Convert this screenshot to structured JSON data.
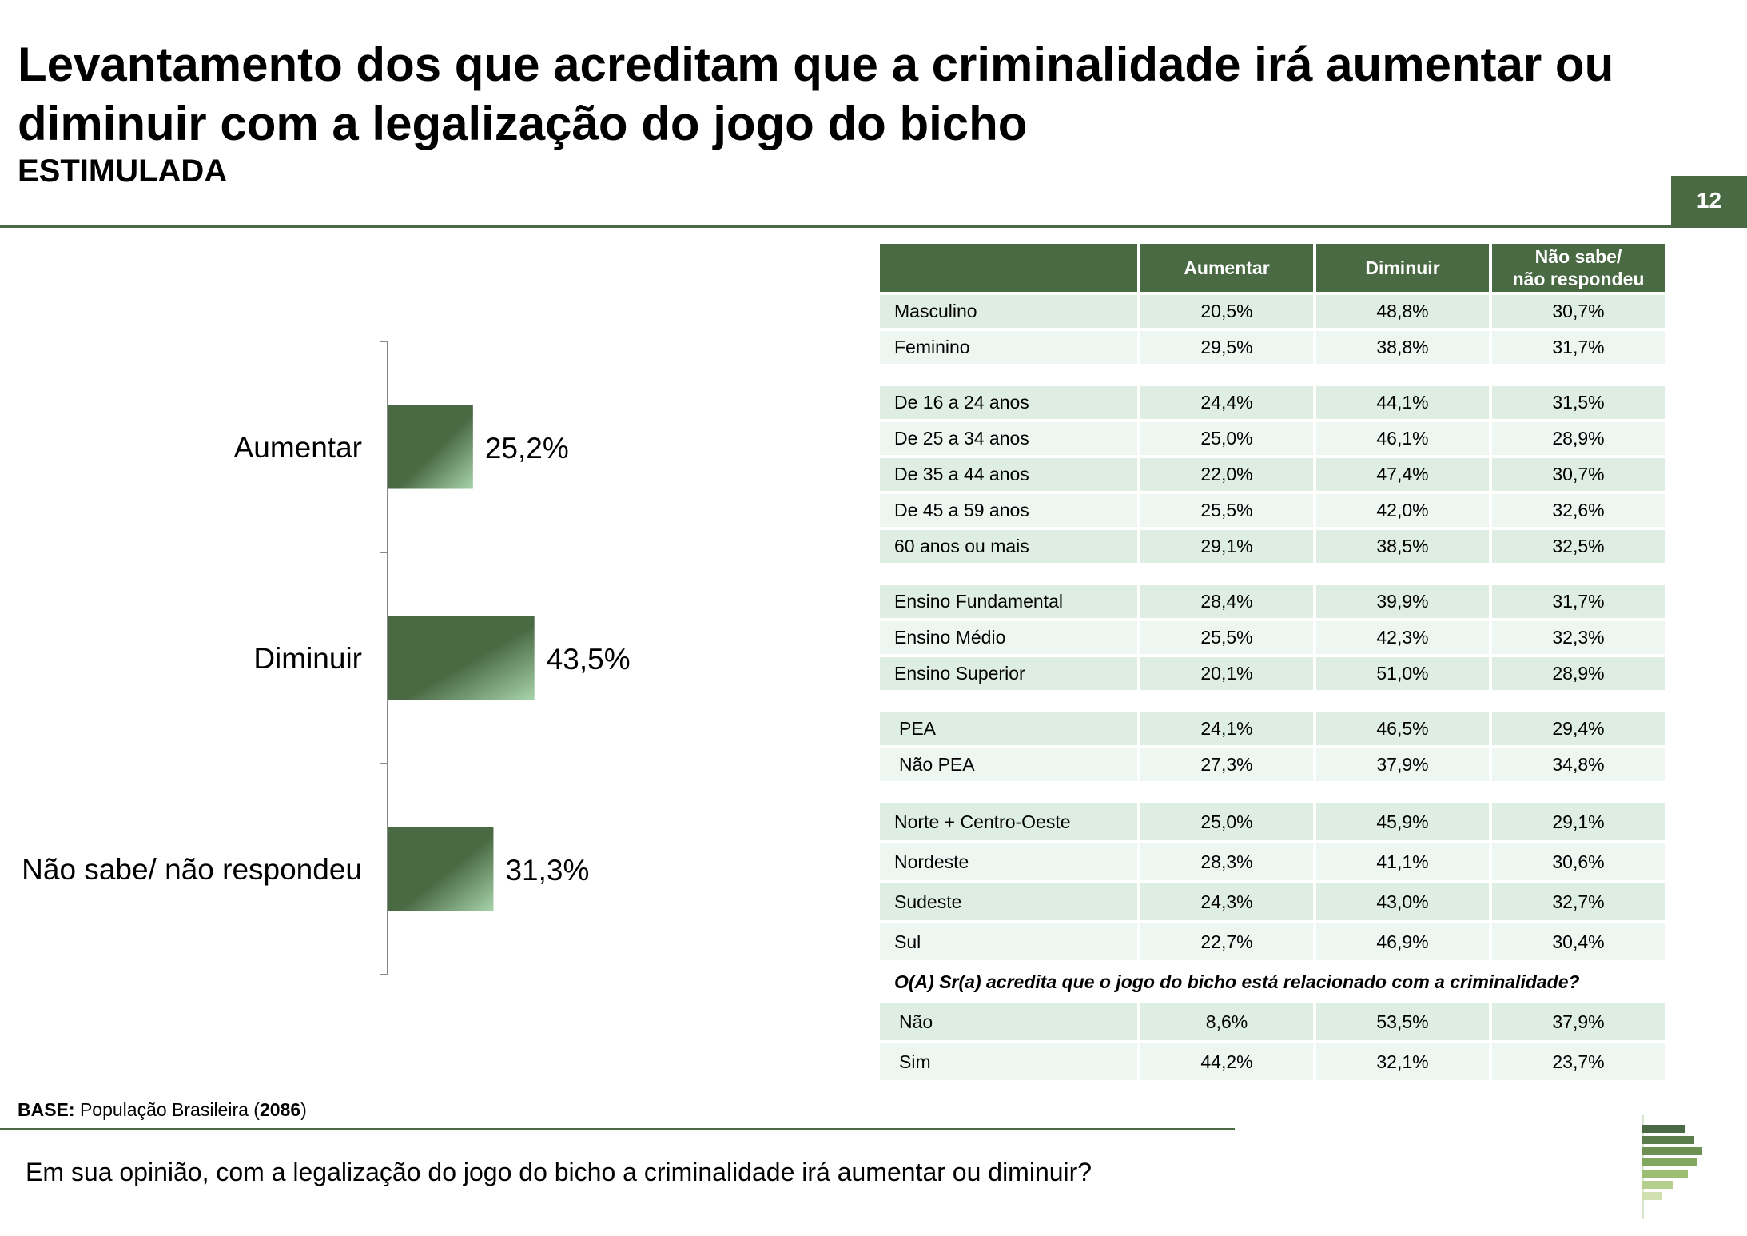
{
  "header": {
    "title": "Levantamento dos que acreditam que a criminalidade irá aumentar ou diminuir com a legalização do jogo do bicho",
    "subtitle": "ESTIMULADA",
    "page_number": "12"
  },
  "colors": {
    "accent": "#4a6a44",
    "bar_dark": "#4a6a44",
    "bar_light": "#9bc79e",
    "row_dark": "#deeee3",
    "row_light": "#edf6f0"
  },
  "chart_data": {
    "type": "bar",
    "orientation": "horizontal",
    "categories": [
      "Aumentar",
      "Diminuir",
      "Não sabe/ não respondeu"
    ],
    "values": [
      25.2,
      43.5,
      31.3
    ],
    "value_labels": [
      "25,2%",
      "43,5%",
      "31,3%"
    ],
    "unit": "%",
    "grid": false
  },
  "table": {
    "headers": [
      "",
      "Aumentar",
      "Diminuir",
      "Não sabe/\nnão respondeu"
    ],
    "groups": [
      {
        "rows": [
          [
            "Masculino",
            "20,5%",
            "48,8%",
            "30,7%"
          ],
          [
            "Feminino",
            "29,5%",
            "38,8%",
            "31,7%"
          ]
        ]
      },
      {
        "rows": [
          [
            "De 16 a 24 anos",
            "24,4%",
            "44,1%",
            "31,5%"
          ],
          [
            "De 25 a 34 anos",
            "25,0%",
            "46,1%",
            "28,9%"
          ],
          [
            "De 35 a 44 anos",
            "22,0%",
            "47,4%",
            "30,7%"
          ],
          [
            "De 45 a 59 anos",
            "25,5%",
            "42,0%",
            "32,6%"
          ],
          [
            "60 anos ou mais",
            "29,1%",
            "38,5%",
            "32,5%"
          ]
        ]
      },
      {
        "rows": [
          [
            "Ensino Fundamental",
            "28,4%",
            "39,9%",
            "31,7%"
          ],
          [
            "Ensino Médio",
            "25,5%",
            "42,3%",
            "32,3%"
          ],
          [
            "Ensino Superior",
            "20,1%",
            "51,0%",
            "28,9%"
          ]
        ]
      },
      {
        "rows": [
          [
            "PEA",
            "24,1%",
            "46,5%",
            "29,4%"
          ],
          [
            "Não PEA",
            "27,3%",
            "37,9%",
            "34,8%"
          ]
        ]
      },
      {
        "rows": [
          [
            "Norte + Centro-Oeste",
            "25,0%",
            "45,9%",
            "29,1%"
          ],
          [
            "Nordeste",
            "28,3%",
            "41,1%",
            "30,6%"
          ],
          [
            "Sudeste",
            "24,3%",
            "43,0%",
            "32,7%"
          ],
          [
            "Sul",
            "22,7%",
            "46,9%",
            "30,4%"
          ]
        ]
      }
    ],
    "question": "O(A) Sr(a) acredita que o jogo do bicho está relacionado com a criminalidade?",
    "question_rows": [
      [
        "Não",
        "8,6%",
        "53,5%",
        "37,9%"
      ],
      [
        "Sim",
        "44,2%",
        "32,1%",
        "23,7%"
      ]
    ]
  },
  "footer": {
    "base_label": "BASE:",
    "base_text": "População Brasileira (",
    "base_number": "2086",
    "base_close": ")",
    "question": "Em sua opinião, com a legalização do jogo do bicho a criminalidade irá aumentar ou diminuir?"
  },
  "logo": {
    "icon": "striped-flag-logo"
  }
}
